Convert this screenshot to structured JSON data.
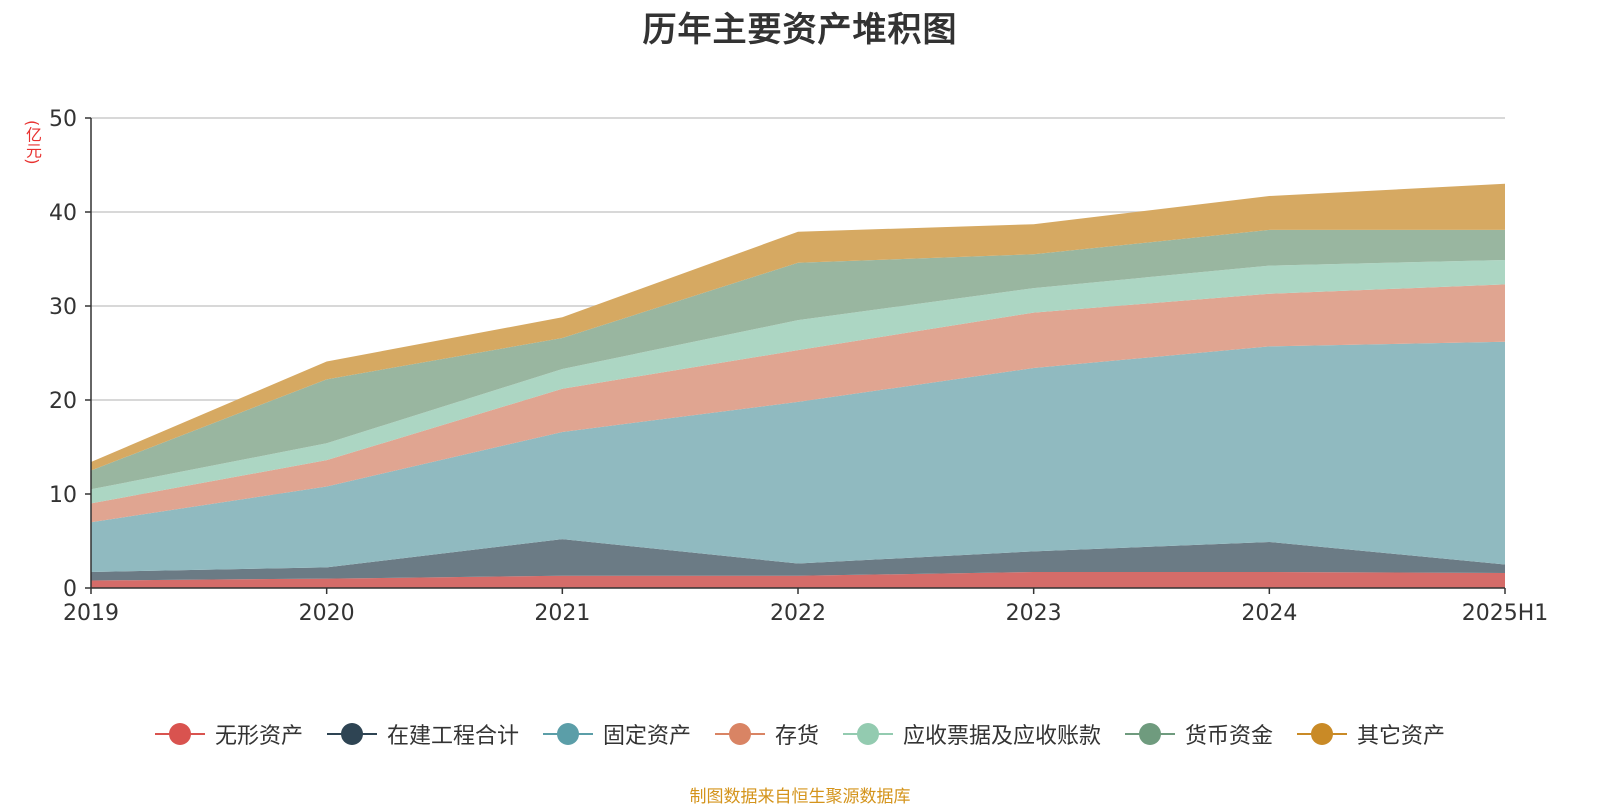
{
  "chart_data": {
    "type": "area",
    "stacked": true,
    "title": "历年主要资产堆积图",
    "unit": "(亿元)",
    "source": "制图数据来自恒生聚源数据库",
    "categories": [
      "2019",
      "2020",
      "2021",
      "2022",
      "2023",
      "2024",
      "2025H1"
    ],
    "ylim": [
      0,
      50
    ],
    "yticks": [
      0,
      10,
      20,
      30,
      40,
      50
    ],
    "grid": true,
    "legend_position": "bottom",
    "series": [
      {
        "name": "无形资产",
        "color": "#d9534f",
        "fill": "#d56c69",
        "values": [
          0.8,
          1.0,
          1.3,
          1.3,
          1.7,
          1.7,
          1.6
        ]
      },
      {
        "name": "在建工程合计",
        "color": "#2e4453",
        "fill": "#6b7b85",
        "values": [
          0.9,
          1.2,
          3.9,
          1.3,
          2.2,
          3.2,
          0.9
        ]
      },
      {
        "name": "固定资产",
        "color": "#5b9ea8",
        "fill": "#90bac0",
        "values": [
          5.3,
          8.6,
          11.4,
          17.2,
          19.5,
          20.8,
          23.7
        ]
      },
      {
        "name": "存货",
        "color": "#d98464",
        "fill": "#e0a591",
        "values": [
          2.0,
          2.8,
          4.6,
          5.5,
          5.9,
          5.6,
          6.1
        ]
      },
      {
        "name": "应收票据及应收账款",
        "color": "#93cbb0",
        "fill": "#acd6c3",
        "values": [
          1.5,
          1.8,
          2.1,
          3.2,
          2.6,
          3.0,
          2.6
        ]
      },
      {
        "name": "货币资金",
        "color": "#6f9b7e",
        "fill": "#99b6a0",
        "values": [
          2.0,
          6.8,
          3.3,
          6.1,
          3.6,
          3.8,
          3.2
        ]
      },
      {
        "name": "其它资产",
        "color": "#c98a26",
        "fill": "#d6a962",
        "values": [
          0.9,
          1.9,
          2.2,
          3.3,
          3.2,
          3.6,
          4.9
        ]
      }
    ]
  }
}
